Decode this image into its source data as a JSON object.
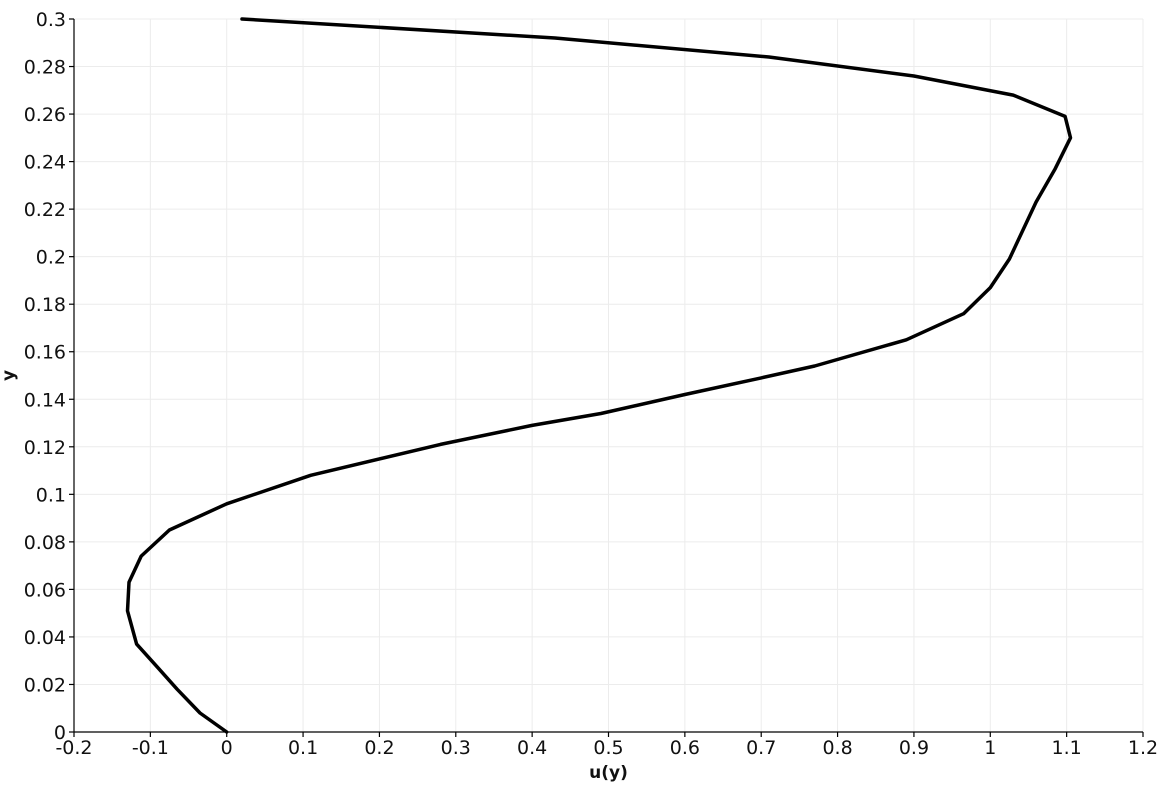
{
  "chart_data": {
    "type": "line",
    "xlabel": "u(y)",
    "ylabel": "y",
    "xlim": [
      -0.2,
      1.2
    ],
    "ylim": [
      0,
      0.3
    ],
    "x_ticks": [
      -0.2,
      -0.1,
      0,
      0.1,
      0.2,
      0.3,
      0.4,
      0.5,
      0.6,
      0.7,
      0.8,
      0.9,
      1,
      1.1,
      1.2
    ],
    "x_tick_labels": [
      "-0.2",
      "-0.1",
      "0",
      "0.1",
      "0.2",
      "0.3",
      "0.4",
      "0.5",
      "0.6",
      "0.7",
      "0.8",
      "0.9",
      "1",
      "1.1",
      "1.2"
    ],
    "y_ticks": [
      0,
      0.02,
      0.04,
      0.06,
      0.08,
      0.1,
      0.12,
      0.14,
      0.16,
      0.18,
      0.2,
      0.22,
      0.24,
      0.26,
      0.28,
      0.3
    ],
    "y_tick_labels": [
      "0",
      "0.02",
      "0.04",
      "0.06",
      "0.08",
      "0.1",
      "0.12",
      "0.14",
      "0.16",
      "0.18",
      "0.2",
      "0.22",
      "0.24",
      "0.26",
      "0.28",
      "0.3"
    ],
    "grid": true,
    "legend": false,
    "series": [
      {
        "color": "#000000",
        "x": [
          0,
          -0.035,
          -0.065,
          -0.09,
          -0.118,
          -0.13,
          -0.128,
          -0.112,
          -0.075,
          0,
          0.11,
          0.28,
          0.4,
          0.49,
          0.6,
          0.7,
          0.77,
          0.89,
          0.965,
          1.0,
          1.025,
          1.06,
          1.085,
          1.105,
          1.098,
          1.03,
          0.9,
          0.71,
          0.43,
          0.02
        ],
        "y": [
          0,
          0.008,
          0.018,
          0.027,
          0.037,
          0.051,
          0.063,
          0.074,
          0.085,
          0.096,
          0.108,
          0.121,
          0.129,
          0.134,
          0.142,
          0.149,
          0.154,
          0.165,
          0.176,
          0.187,
          0.199,
          0.223,
          0.237,
          0.25,
          0.259,
          0.268,
          0.276,
          0.284,
          0.292,
          0.3
        ]
      }
    ]
  }
}
